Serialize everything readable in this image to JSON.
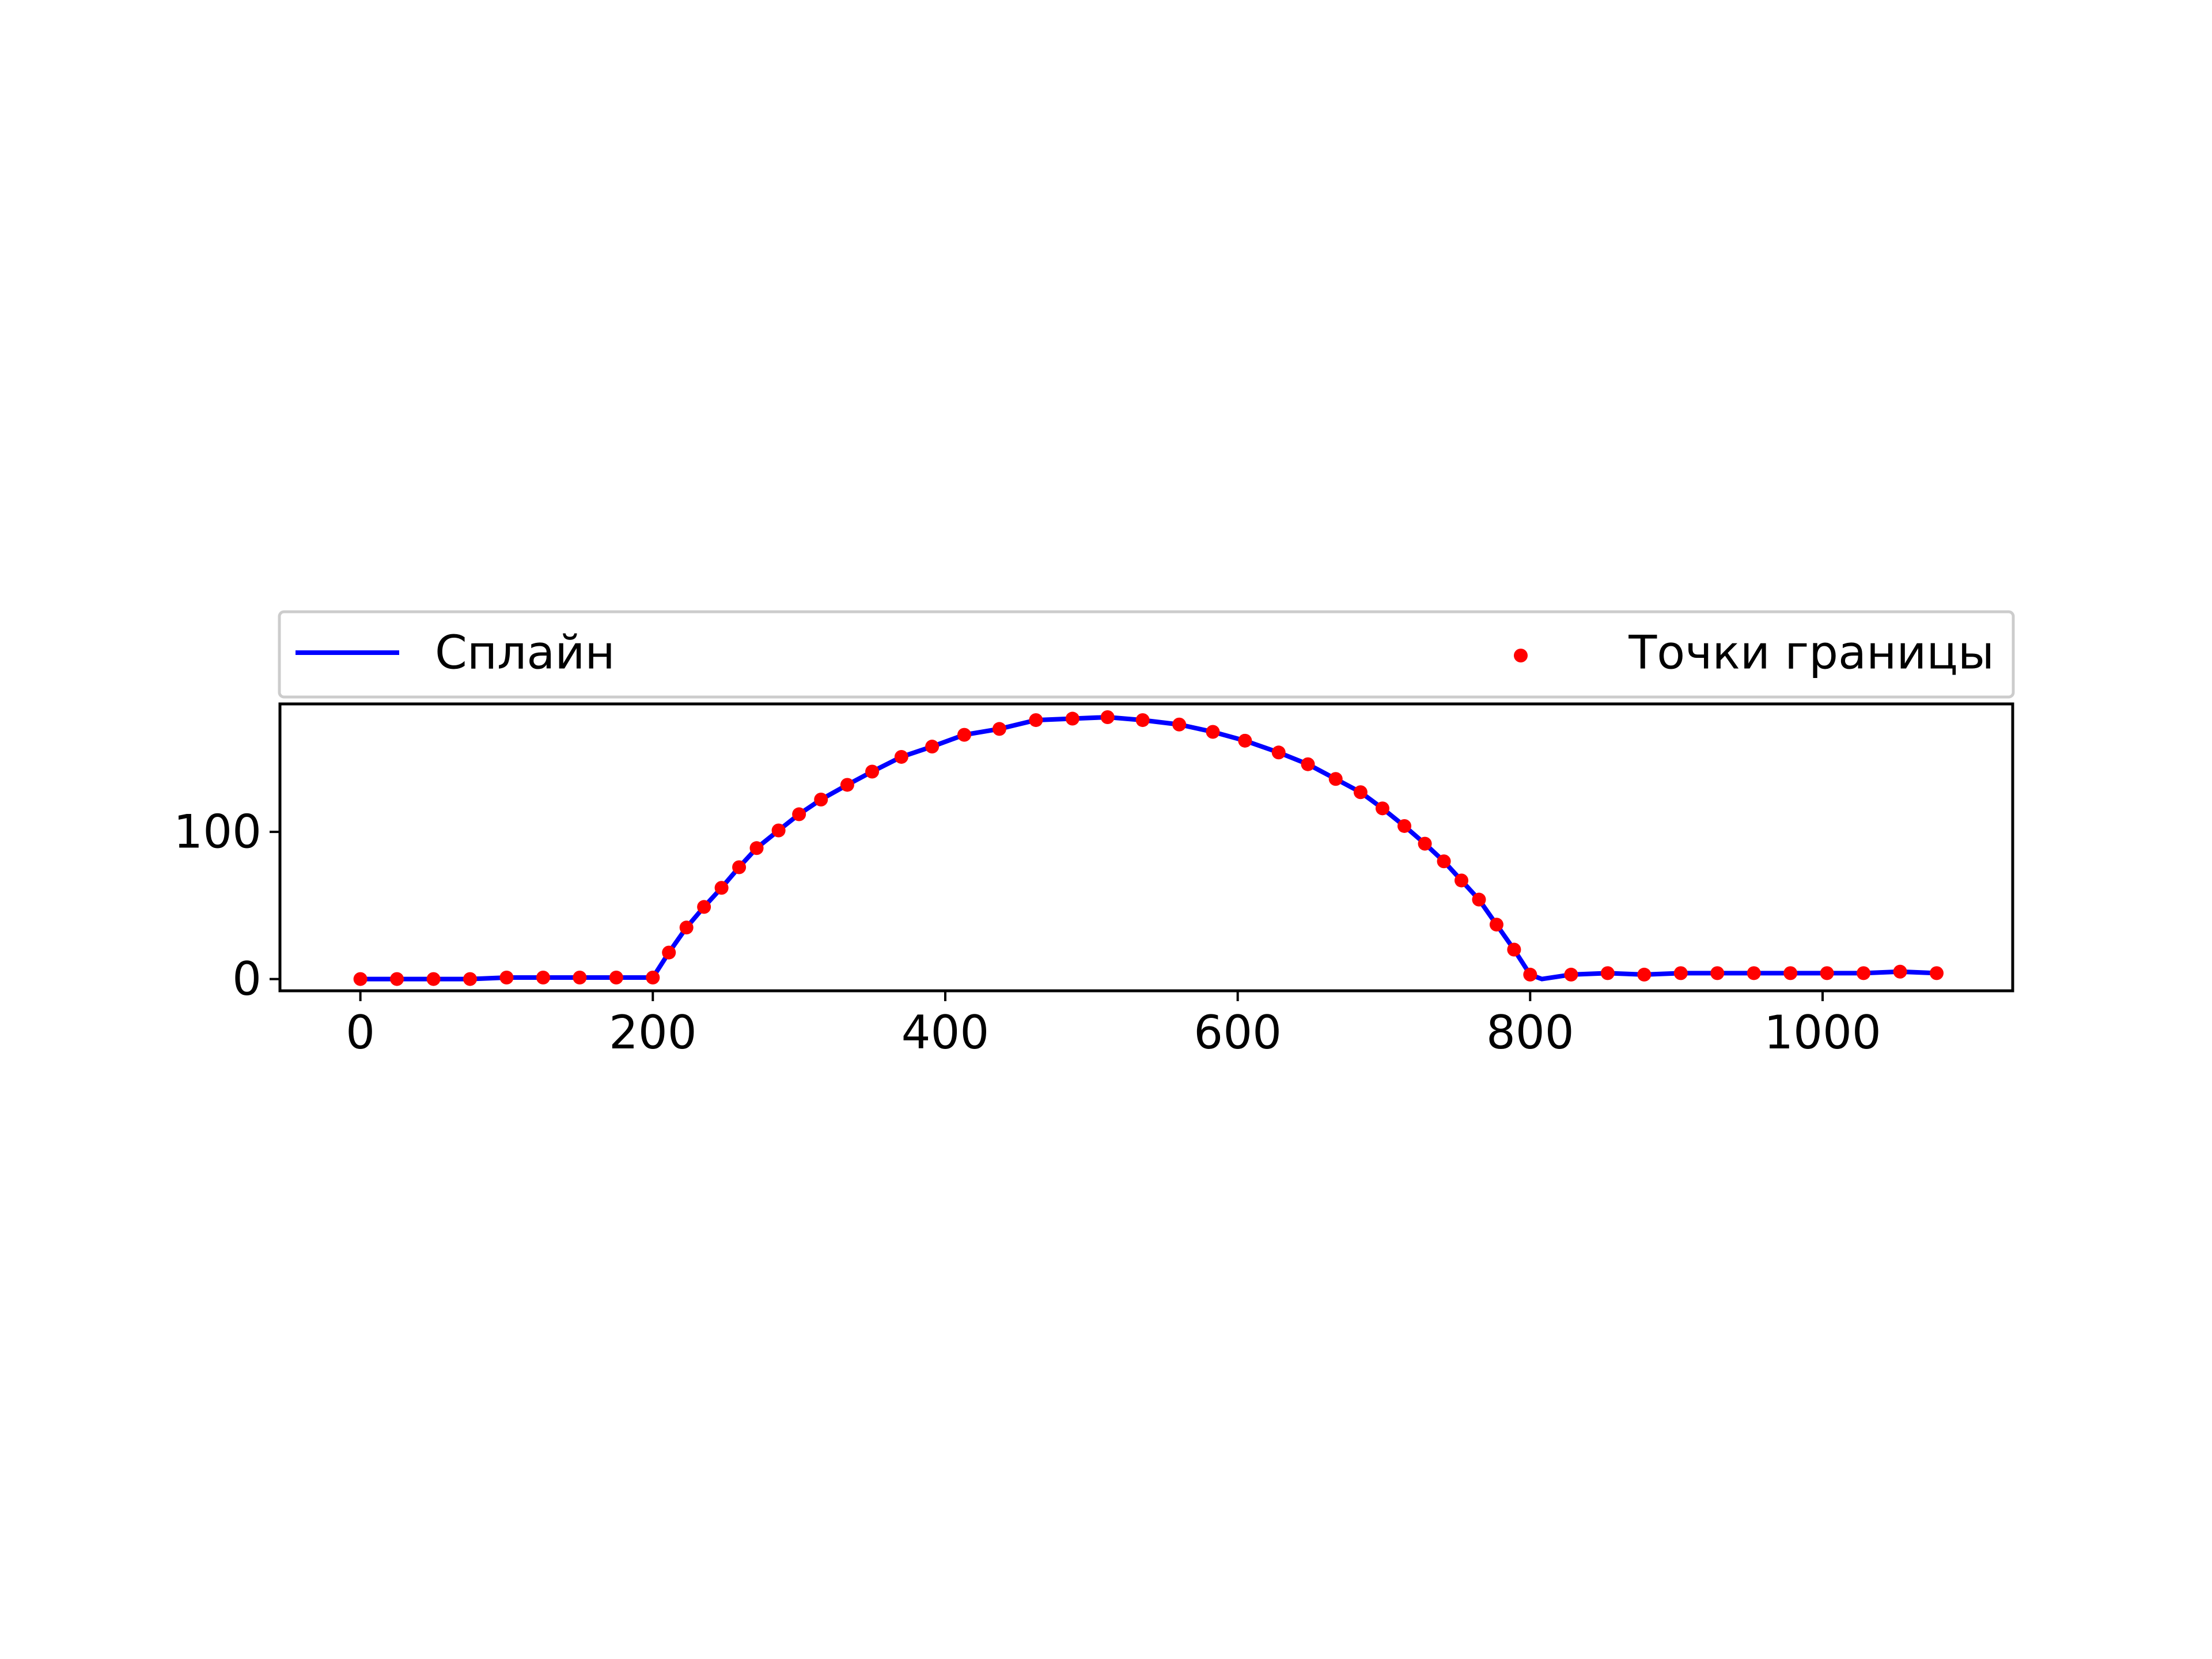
{
  "chart_data": {
    "type": "line",
    "xlim": [
      -55,
      1130
    ],
    "ylim": [
      -8,
      187
    ],
    "x_ticks": [
      0,
      200,
      400,
      600,
      800,
      1000
    ],
    "y_ticks": [
      0,
      100
    ],
    "x_tick_labels": [
      "0",
      "200",
      "400",
      "600",
      "800",
      "1000"
    ],
    "y_tick_labels": [
      "0",
      "100"
    ],
    "grid": false,
    "legend": {
      "placement": "top",
      "entries": [
        {
          "label": "Сплайн",
          "kind": "line",
          "color": "#0000ff"
        },
        {
          "label": "Точки границы",
          "kind": "marker",
          "color": "#ff0000"
        }
      ]
    },
    "series": [
      {
        "name": "Сплайн",
        "kind": "line",
        "color": "#0000ff",
        "points": [
          [
            0,
            0
          ],
          [
            25,
            0
          ],
          [
            50,
            0
          ],
          [
            75,
            0
          ],
          [
            100,
            1
          ],
          [
            125,
            1
          ],
          [
            150,
            1
          ],
          [
            175,
            1
          ],
          [
            200,
            1
          ],
          [
            211,
            18
          ],
          [
            223,
            35
          ],
          [
            235,
            49
          ],
          [
            247,
            62
          ],
          [
            259,
            76
          ],
          [
            271,
            89
          ],
          [
            286,
            101
          ],
          [
            300,
            112
          ],
          [
            315,
            122
          ],
          [
            333,
            132
          ],
          [
            350,
            141
          ],
          [
            370,
            151
          ],
          [
            391,
            158
          ],
          [
            413,
            166
          ],
          [
            437,
            170
          ],
          [
            462,
            176
          ],
          [
            487,
            177
          ],
          [
            511,
            178
          ],
          [
            535,
            176
          ],
          [
            560,
            173
          ],
          [
            583,
            168
          ],
          [
            605,
            162
          ],
          [
            628,
            154
          ],
          [
            648,
            146
          ],
          [
            667,
            136
          ],
          [
            684,
            127
          ],
          [
            699,
            116
          ],
          [
            714,
            104
          ],
          [
            728,
            92
          ],
          [
            741,
            80
          ],
          [
            753,
            67
          ],
          [
            765,
            54
          ],
          [
            777,
            37
          ],
          [
            789,
            20
          ],
          [
            800,
            3
          ],
          [
            808,
            0
          ],
          [
            828,
            3
          ],
          [
            853,
            4
          ],
          [
            878,
            3
          ],
          [
            903,
            4
          ],
          [
            928,
            4
          ],
          [
            953,
            4
          ],
          [
            978,
            4
          ],
          [
            1003,
            4
          ],
          [
            1028,
            4
          ],
          [
            1053,
            5
          ],
          [
            1078,
            4
          ]
        ]
      },
      {
        "name": "Точки границы",
        "kind": "scatter",
        "color": "#ff0000",
        "points": [
          [
            0,
            0
          ],
          [
            25,
            0
          ],
          [
            50,
            0
          ],
          [
            75,
            0
          ],
          [
            100,
            1
          ],
          [
            125,
            1
          ],
          [
            150,
            1
          ],
          [
            175,
            1
          ],
          [
            200,
            1
          ],
          [
            211,
            18
          ],
          [
            223,
            35
          ],
          [
            235,
            49
          ],
          [
            247,
            62
          ],
          [
            259,
            76
          ],
          [
            271,
            89
          ],
          [
            286,
            101
          ],
          [
            300,
            112
          ],
          [
            315,
            122
          ],
          [
            333,
            132
          ],
          [
            350,
            141
          ],
          [
            370,
            151
          ],
          [
            391,
            158
          ],
          [
            413,
            166
          ],
          [
            437,
            170
          ],
          [
            462,
            176
          ],
          [
            487,
            177
          ],
          [
            511,
            178
          ],
          [
            535,
            176
          ],
          [
            560,
            173
          ],
          [
            583,
            168
          ],
          [
            605,
            162
          ],
          [
            628,
            154
          ],
          [
            648,
            146
          ],
          [
            667,
            136
          ],
          [
            684,
            127
          ],
          [
            699,
            116
          ],
          [
            714,
            104
          ],
          [
            728,
            92
          ],
          [
            741,
            80
          ],
          [
            753,
            67
          ],
          [
            765,
            54
          ],
          [
            777,
            37
          ],
          [
            789,
            20
          ],
          [
            800,
            3
          ],
          [
            828,
            3
          ],
          [
            853,
            4
          ],
          [
            878,
            3
          ],
          [
            903,
            4
          ],
          [
            928,
            4
          ],
          [
            953,
            4
          ],
          [
            978,
            4
          ],
          [
            1003,
            4
          ],
          [
            1028,
            4
          ],
          [
            1053,
            5
          ],
          [
            1078,
            4
          ]
        ]
      }
    ]
  }
}
